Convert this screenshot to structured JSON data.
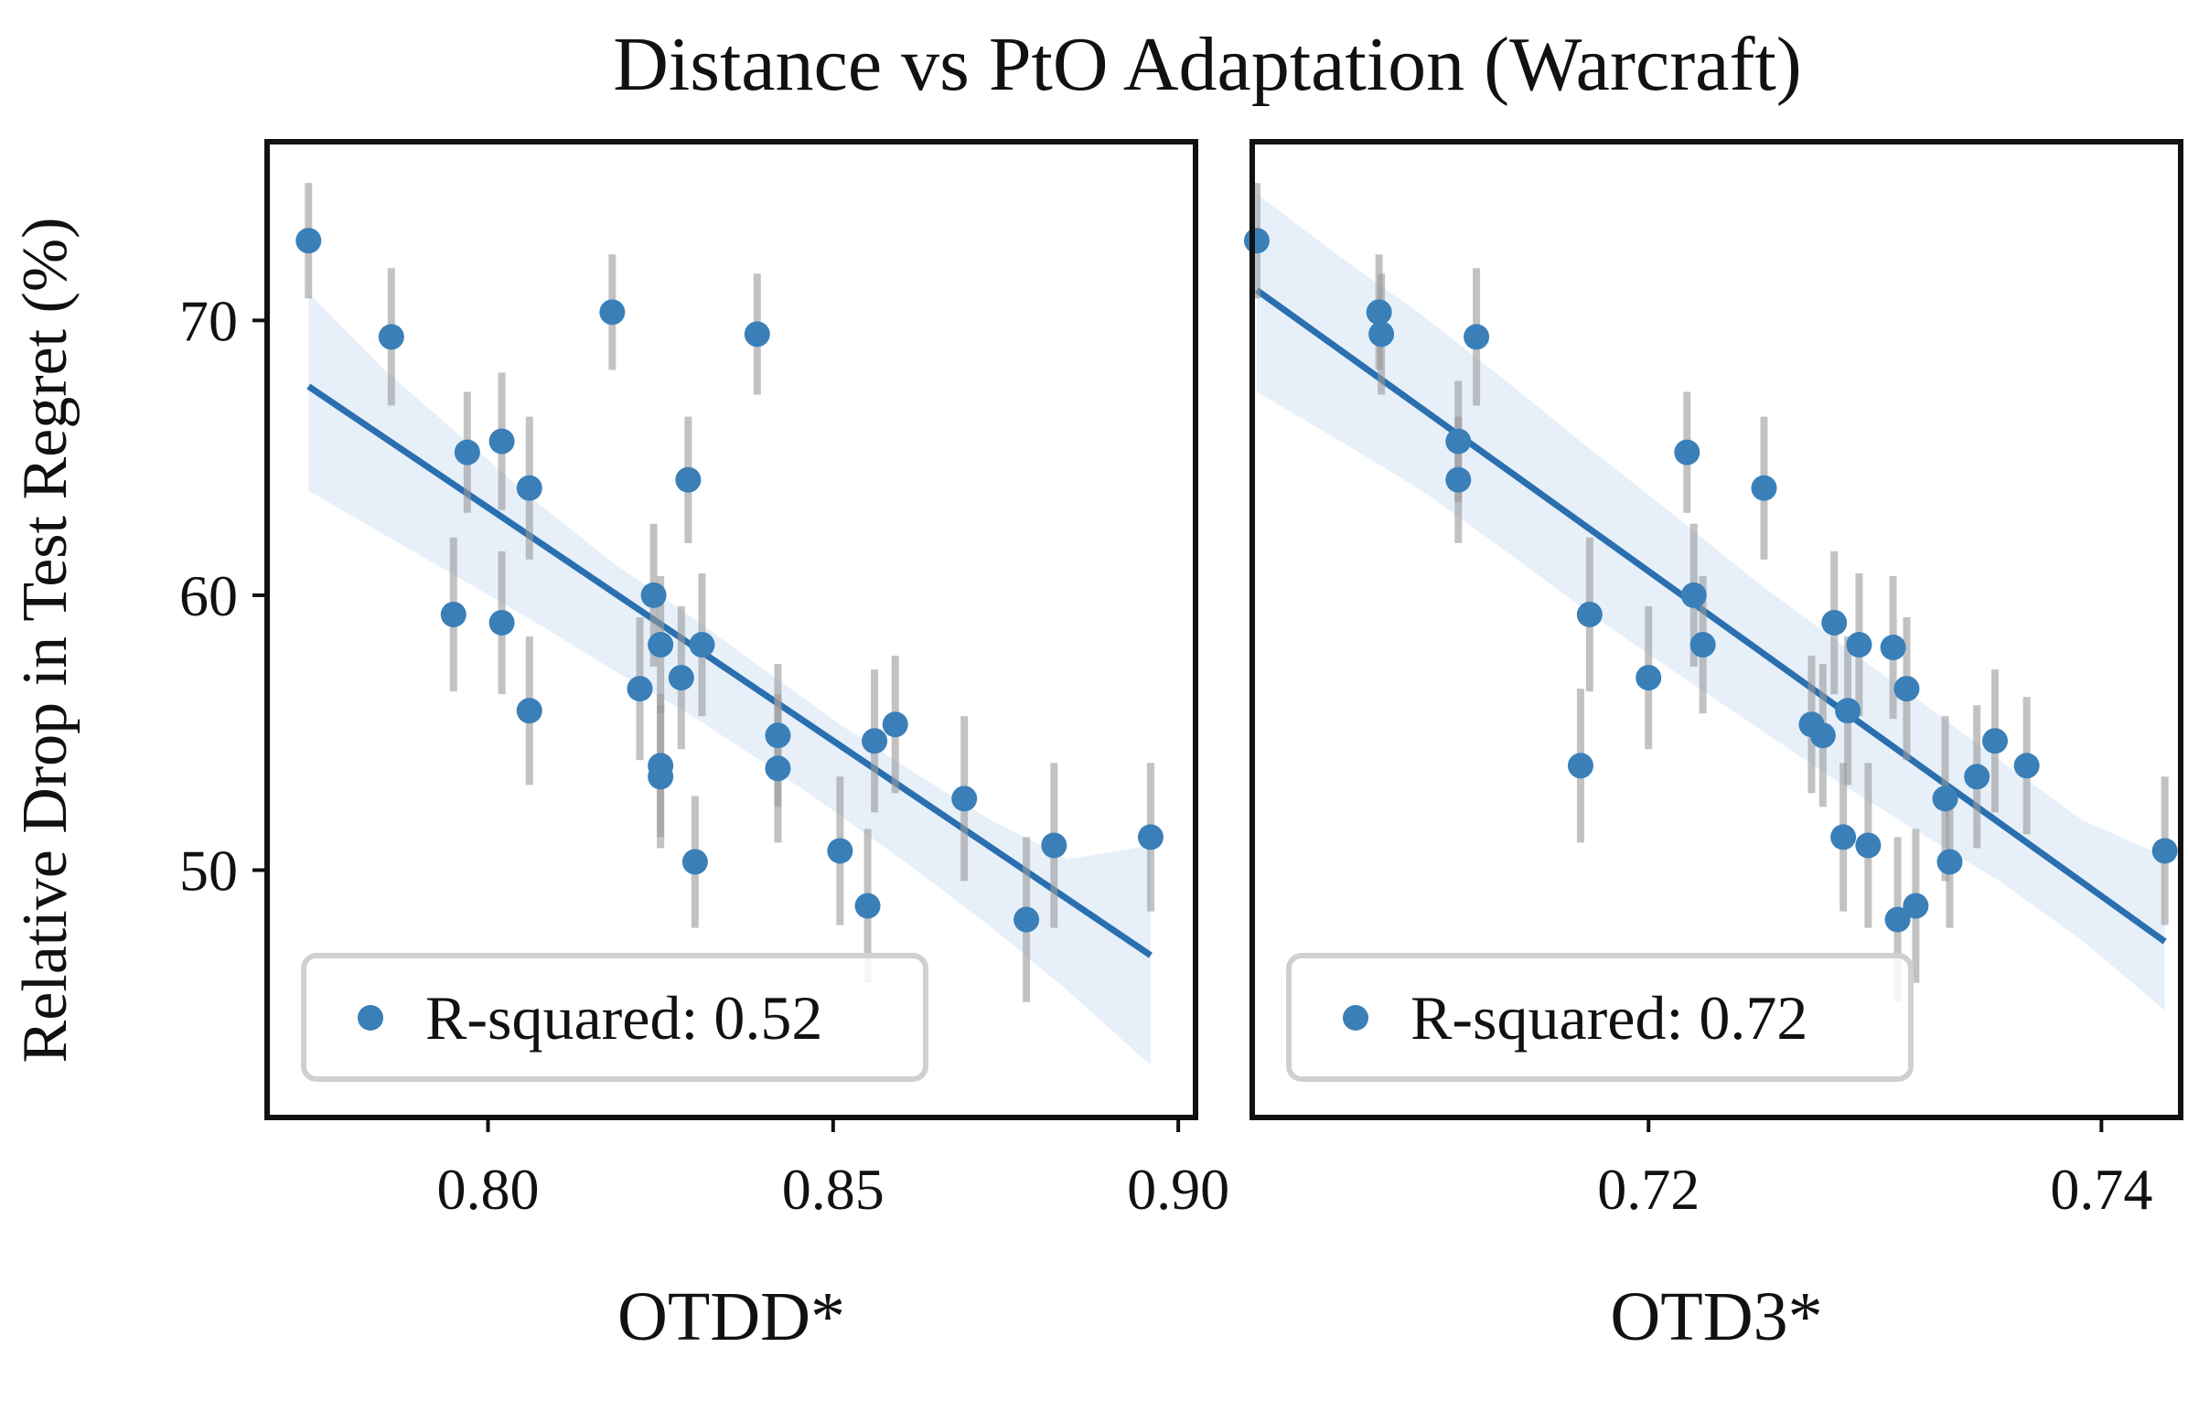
{
  "chart_data": {
    "type": "scatter",
    "title": "Distance vs PtO Adaptation (Warcraft)",
    "ylabel": "Relative Drop in Test Regret (%)",
    "ylim": [
      41,
      76.5
    ],
    "yticks": [
      50,
      60,
      70
    ],
    "ytick_labels": [
      "50",
      "60",
      "70"
    ],
    "colors": {
      "points": "#3a7fb8",
      "line": "#2a6faf",
      "band": "#5b9bd5",
      "errorbar": "#9a9a9a"
    },
    "panels": [
      {
        "xlabel": "OTDD*",
        "xlim": [
          0.768,
          0.9025
        ],
        "xticks": [
          0.8,
          0.85,
          0.9
        ],
        "xtick_labels": [
          "0.80",
          "0.85",
          "0.90"
        ],
        "legend_label": "R-squared: 0.52",
        "fit": {
          "x": [
            0.774,
            0.896
          ],
          "y": [
            67.6,
            46.9
          ],
          "band_x": [
            0.774,
            0.785,
            0.796,
            0.807,
            0.818,
            0.829,
            0.84,
            0.851,
            0.862,
            0.873,
            0.884,
            0.896
          ],
          "band_lo": [
            63.8,
            62.2,
            60.6,
            59.0,
            57.3,
            55.7,
            53.9,
            52.0,
            50.0,
            47.9,
            45.6,
            42.9
          ],
          "band_hi": [
            71.0,
            68.2,
            65.8,
            63.4,
            61.2,
            59.3,
            57.3,
            55.3,
            53.5,
            51.8,
            50.4,
            50.9
          ]
        },
        "points": [
          {
            "x": 0.774,
            "y": 72.9,
            "err": 2.1
          },
          {
            "x": 0.786,
            "y": 69.4,
            "err": 2.5
          },
          {
            "x": 0.795,
            "y": 59.3,
            "err": 2.8
          },
          {
            "x": 0.797,
            "y": 65.2,
            "err": 2.2
          },
          {
            "x": 0.802,
            "y": 65.6,
            "err": 2.5
          },
          {
            "x": 0.802,
            "y": 59.0,
            "err": 2.6
          },
          {
            "x": 0.806,
            "y": 63.9,
            "err": 2.6
          },
          {
            "x": 0.806,
            "y": 55.8,
            "err": 2.7
          },
          {
            "x": 0.818,
            "y": 70.3,
            "err": 2.1
          },
          {
            "x": 0.822,
            "y": 56.6,
            "err": 2.6
          },
          {
            "x": 0.824,
            "y": 60.0,
            "err": 2.6
          },
          {
            "x": 0.825,
            "y": 58.2,
            "err": 2.5
          },
          {
            "x": 0.825,
            "y": 53.8,
            "err": 2.6
          },
          {
            "x": 0.825,
            "y": 53.4,
            "err": 2.6
          },
          {
            "x": 0.828,
            "y": 57.0,
            "err": 2.6
          },
          {
            "x": 0.829,
            "y": 64.2,
            "err": 2.3
          },
          {
            "x": 0.83,
            "y": 50.3,
            "err": 2.4
          },
          {
            "x": 0.831,
            "y": 58.2,
            "err": 2.6
          },
          {
            "x": 0.839,
            "y": 69.5,
            "err": 2.2
          },
          {
            "x": 0.842,
            "y": 54.9,
            "err": 2.6
          },
          {
            "x": 0.842,
            "y": 53.7,
            "err": 2.7
          },
          {
            "x": 0.851,
            "y": 50.7,
            "err": 2.7
          },
          {
            "x": 0.855,
            "y": 48.7,
            "err": 2.8
          },
          {
            "x": 0.856,
            "y": 54.7,
            "err": 2.6
          },
          {
            "x": 0.859,
            "y": 55.3,
            "err": 2.5
          },
          {
            "x": 0.869,
            "y": 52.6,
            "err": 3.0
          },
          {
            "x": 0.878,
            "y": 48.2,
            "err": 3.0
          },
          {
            "x": 0.882,
            "y": 50.9,
            "err": 3.0
          },
          {
            "x": 0.896,
            "y": 51.2,
            "err": 2.7
          }
        ]
      },
      {
        "xlabel": "OTD3*",
        "xlim": [
          0.7025,
          0.7435
        ],
        "xticks": [
          0.72,
          0.74
        ],
        "xtick_labels": [
          "0.72",
          "0.74"
        ],
        "legend_label": "R-squared: 0.72",
        "fit": {
          "x": [
            0.7027,
            0.7428
          ],
          "y": [
            71.1,
            47.4
          ],
          "band_x": [
            0.7027,
            0.7064,
            0.71,
            0.7137,
            0.7173,
            0.721,
            0.7246,
            0.7282,
            0.7319,
            0.7355,
            0.7392,
            0.7428
          ],
          "band_lo": [
            67.4,
            65.6,
            63.8,
            61.6,
            59.4,
            57.3,
            55.3,
            53.3,
            51.4,
            49.6,
            47.4,
            44.9
          ],
          "band_hi": [
            74.6,
            72.3,
            70.2,
            67.8,
            65.4,
            63.0,
            60.6,
            58.4,
            56.2,
            54.0,
            51.8,
            50.5
          ]
        },
        "points": [
          {
            "x": 0.7027,
            "y": 72.9,
            "err": 2.1
          },
          {
            "x": 0.7081,
            "y": 70.3,
            "err": 2.1
          },
          {
            "x": 0.7082,
            "y": 69.5,
            "err": 2.2
          },
          {
            "x": 0.7116,
            "y": 65.6,
            "err": 2.2
          },
          {
            "x": 0.7116,
            "y": 64.2,
            "err": 2.3
          },
          {
            "x": 0.7124,
            "y": 69.4,
            "err": 2.5
          },
          {
            "x": 0.717,
            "y": 53.8,
            "err": 2.8
          },
          {
            "x": 0.7174,
            "y": 59.3,
            "err": 2.8
          },
          {
            "x": 0.72,
            "y": 57.0,
            "err": 2.6
          },
          {
            "x": 0.7217,
            "y": 65.2,
            "err": 2.2
          },
          {
            "x": 0.722,
            "y": 60.0,
            "err": 2.6
          },
          {
            "x": 0.7224,
            "y": 58.2,
            "err": 2.5
          },
          {
            "x": 0.7251,
            "y": 63.9,
            "err": 2.6
          },
          {
            "x": 0.7272,
            "y": 55.3,
            "err": 2.5
          },
          {
            "x": 0.7277,
            "y": 54.9,
            "err": 2.6
          },
          {
            "x": 0.7282,
            "y": 59.0,
            "err": 2.6
          },
          {
            "x": 0.7286,
            "y": 51.2,
            "err": 2.7
          },
          {
            "x": 0.7288,
            "y": 55.8,
            "err": 2.7
          },
          {
            "x": 0.7293,
            "y": 58.2,
            "err": 2.6
          },
          {
            "x": 0.7297,
            "y": 50.9,
            "err": 3.0
          },
          {
            "x": 0.7308,
            "y": 58.1,
            "err": 2.6
          },
          {
            "x": 0.731,
            "y": 48.2,
            "err": 3.0
          },
          {
            "x": 0.7314,
            "y": 56.6,
            "err": 2.6
          },
          {
            "x": 0.7318,
            "y": 48.7,
            "err": 2.8
          },
          {
            "x": 0.7331,
            "y": 52.6,
            "err": 3.0
          },
          {
            "x": 0.7333,
            "y": 50.3,
            "err": 2.4
          },
          {
            "x": 0.7345,
            "y": 53.4,
            "err": 2.6
          },
          {
            "x": 0.7353,
            "y": 54.7,
            "err": 2.6
          },
          {
            "x": 0.7367,
            "y": 53.8,
            "err": 2.5
          },
          {
            "x": 0.7428,
            "y": 50.7,
            "err": 2.7
          }
        ]
      }
    ]
  }
}
